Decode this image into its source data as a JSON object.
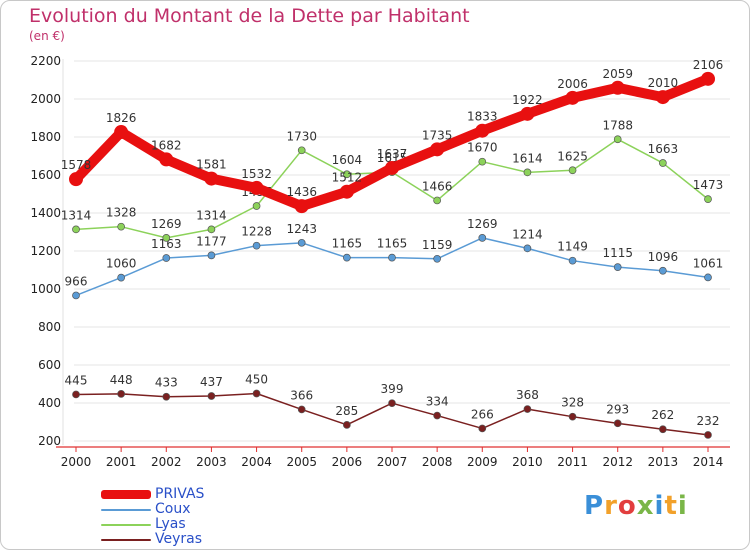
{
  "title": "Evolution du Montant de la Dette par Habitant",
  "subtitle": "(en €)",
  "logo": {
    "letters": [
      {
        "char": "P",
        "color": "#3a8fd8"
      },
      {
        "char": "r",
        "color": "#f2a12a"
      },
      {
        "char": "o",
        "color": "#e23e3e"
      },
      {
        "char": "x",
        "color": "#7ab648"
      },
      {
        "char": "i",
        "color": "#3a8fd8"
      },
      {
        "char": "t",
        "color": "#f2a12a"
      },
      {
        "char": "i",
        "color": "#7ab648"
      }
    ]
  },
  "chart_data": {
    "type": "line",
    "title": "Evolution du Montant de la Dette par Habitant",
    "subtitle": "(en €)",
    "xlabel": "",
    "ylabel": "",
    "x": [
      "2000",
      "2001",
      "2002",
      "2003",
      "2004",
      "2005",
      "2006",
      "2007",
      "2008",
      "2009",
      "2010",
      "2011",
      "2012",
      "2013",
      "2014"
    ],
    "yticks": [
      200,
      400,
      600,
      800,
      1000,
      1200,
      1400,
      1600,
      1800,
      2000,
      2200
    ],
    "ylim": [
      200,
      2200
    ],
    "grid": "y",
    "legend_position": "bottom-left",
    "series": [
      {
        "name": "PRIVAS",
        "color": "#e81010",
        "emphasis": true,
        "values": [
          1578,
          1826,
          1682,
          1581,
          1532,
          1436,
          1512,
          1637,
          1735,
          1833,
          1922,
          2006,
          2059,
          2010,
          2106
        ]
      },
      {
        "name": "Coux",
        "color": "#5a9bd5",
        "emphasis": false,
        "values": [
          966,
          1060,
          1163,
          1177,
          1228,
          1243,
          1165,
          1165,
          1159,
          1269,
          1214,
          1149,
          1115,
          1096,
          1061
        ]
      },
      {
        "name": "Lyas",
        "color": "#8cd25a",
        "emphasis": false,
        "values": [
          1314,
          1328,
          1269,
          1314,
          1437,
          1730,
          1604,
          1615,
          1466,
          1670,
          1614,
          1625,
          1788,
          1663,
          1473
        ]
      },
      {
        "name": "Veyras",
        "color": "#7a2020",
        "emphasis": false,
        "values": [
          445,
          448,
          433,
          437,
          450,
          366,
          285,
          399,
          334,
          266,
          368,
          328,
          293,
          262,
          232
        ]
      }
    ]
  }
}
